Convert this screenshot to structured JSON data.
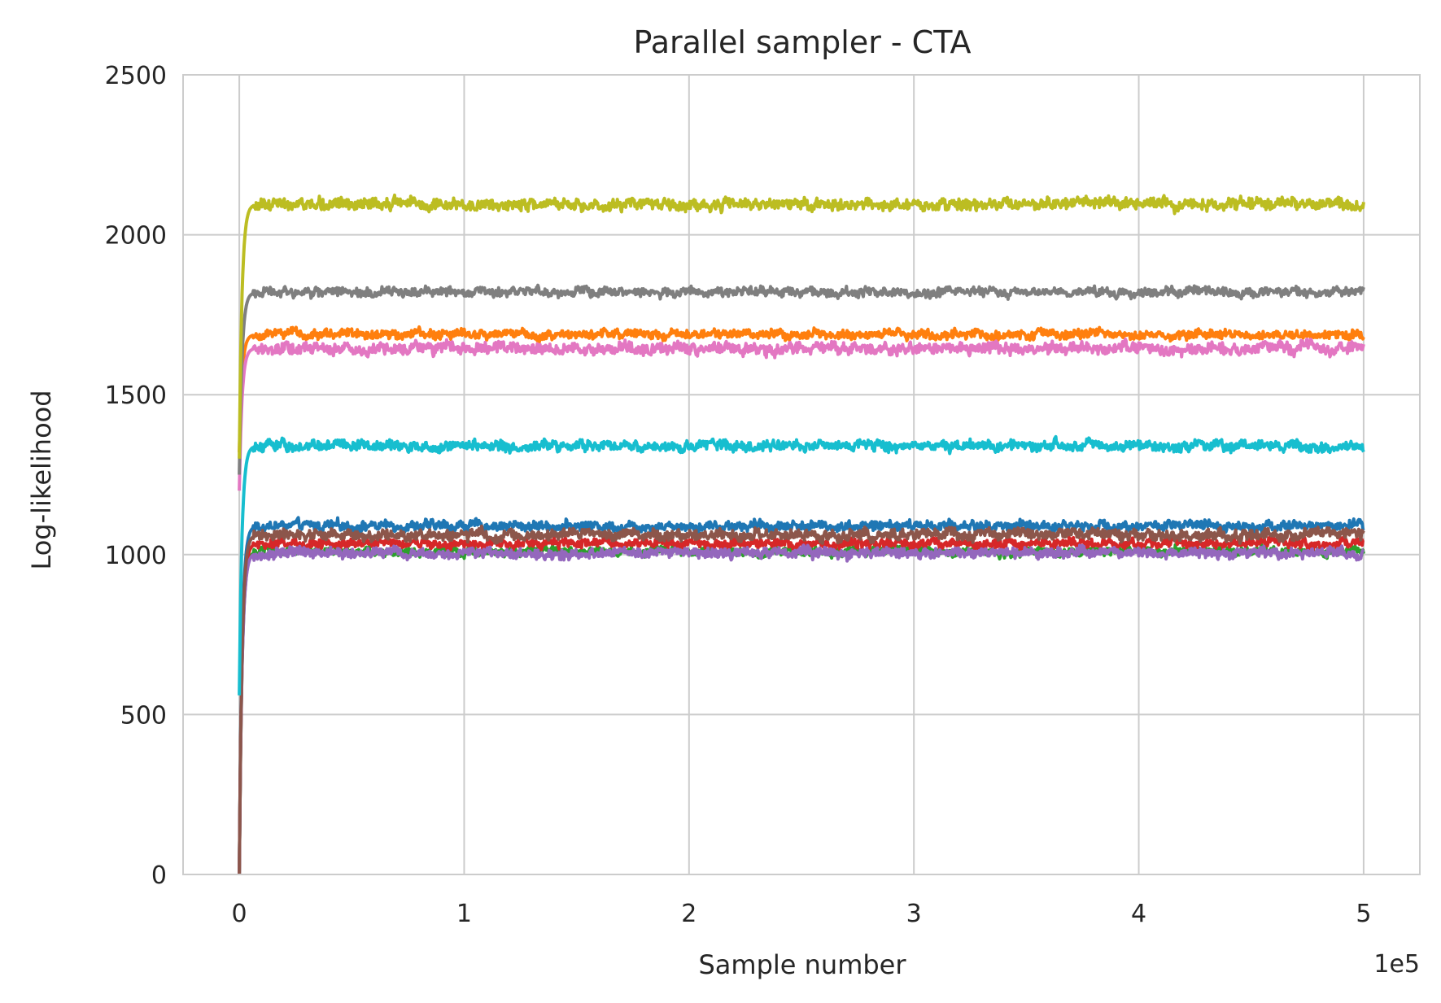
{
  "chart_data": {
    "type": "line",
    "title": "Parallel sampler - CTA",
    "xlabel": "Sample number",
    "ylabel": "Log-likelihood",
    "x_offset_label": "1e5",
    "xlim": [
      -0.25,
      5.25
    ],
    "ylim": [
      0,
      2500
    ],
    "x_ticks": [
      0,
      1,
      2,
      3,
      4,
      5
    ],
    "x_tick_labels": [
      "0",
      "1",
      "2",
      "3",
      "4",
      "5"
    ],
    "y_ticks": [
      0,
      500,
      1000,
      1500,
      2000,
      2500
    ],
    "y_tick_labels": [
      "0",
      "500",
      "1000",
      "1500",
      "2000",
      "2500"
    ],
    "grid": true,
    "legend": "none",
    "x_range": [
      0,
      5
    ],
    "series": [
      {
        "color": "#1f77b4",
        "start": 0,
        "plateau": 1090,
        "noise": 13
      },
      {
        "color": "#ff7f0e",
        "start": 1320,
        "plateau": 1688,
        "noise": 12
      },
      {
        "color": "#2ca02c",
        "start": 0,
        "plateau": 1010,
        "noise": 11
      },
      {
        "color": "#d62728",
        "start": 0,
        "plateau": 1035,
        "noise": 12
      },
      {
        "color": "#9467bd",
        "start": 0,
        "plateau": 1005,
        "noise": 13
      },
      {
        "color": "#8c564b",
        "start": 0,
        "plateau": 1062,
        "noise": 14
      },
      {
        "color": "#e377c2",
        "start": 1200,
        "plateau": 1645,
        "noise": 15
      },
      {
        "color": "#7f7f7f",
        "start": 1250,
        "plateau": 1820,
        "noise": 12
      },
      {
        "color": "#bcbd22",
        "start": 1300,
        "plateau": 2095,
        "noise": 15
      },
      {
        "color": "#17becf",
        "start": 560,
        "plateau": 1340,
        "noise": 14
      }
    ]
  }
}
